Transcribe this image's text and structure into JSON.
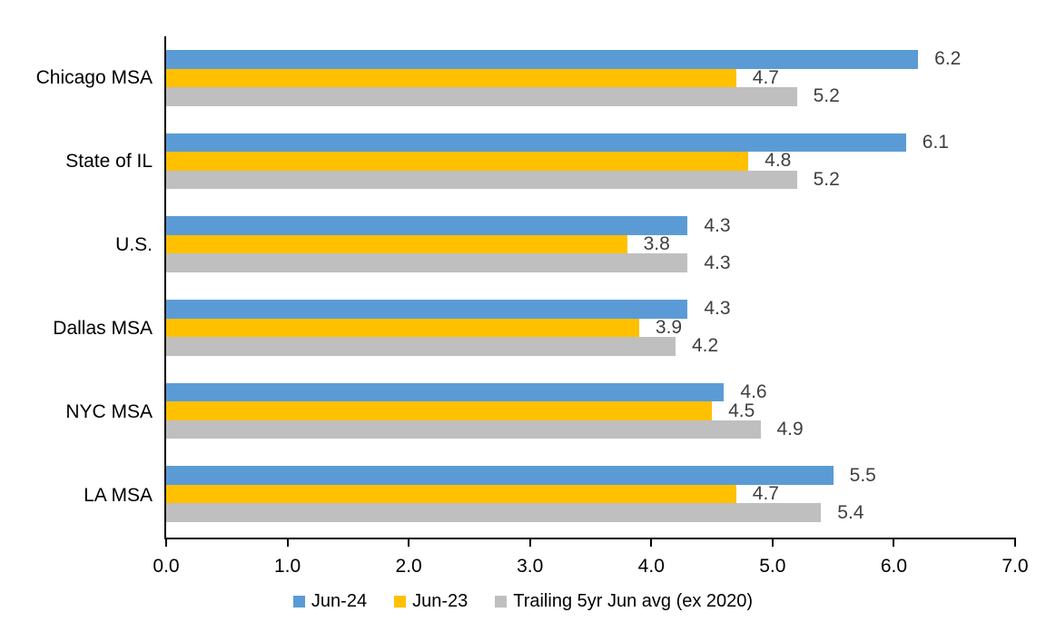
{
  "chart_data": {
    "type": "bar",
    "orientation": "horizontal",
    "categories": [
      "Chicago MSA",
      "State of IL",
      "U.S.",
      "Dallas MSA",
      "NYC MSA",
      "LA MSA"
    ],
    "series": [
      {
        "name": "Jun-24",
        "color": "#5B9BD5",
        "values": [
          6.2,
          6.1,
          4.3,
          4.3,
          4.6,
          5.5
        ]
      },
      {
        "name": "Jun-23",
        "color": "#FFC000",
        "values": [
          4.7,
          4.8,
          3.8,
          3.9,
          4.5,
          4.7
        ]
      },
      {
        "name": "Trailing 5yr Jun avg (ex 2020)",
        "color": "#BFBFBF",
        "values": [
          5.2,
          5.2,
          4.3,
          4.2,
          4.9,
          5.4
        ]
      }
    ],
    "xlim": [
      0,
      7
    ],
    "x_tick_labels": [
      "0.0",
      "1.0",
      "2.0",
      "3.0",
      "4.0",
      "5.0",
      "6.0",
      "7.0"
    ],
    "data_labels": true,
    "data_label_decimals": 1,
    "data_label_color": "#404040",
    "axis_color": "#000000",
    "grid": false,
    "legend_position": "bottom"
  }
}
